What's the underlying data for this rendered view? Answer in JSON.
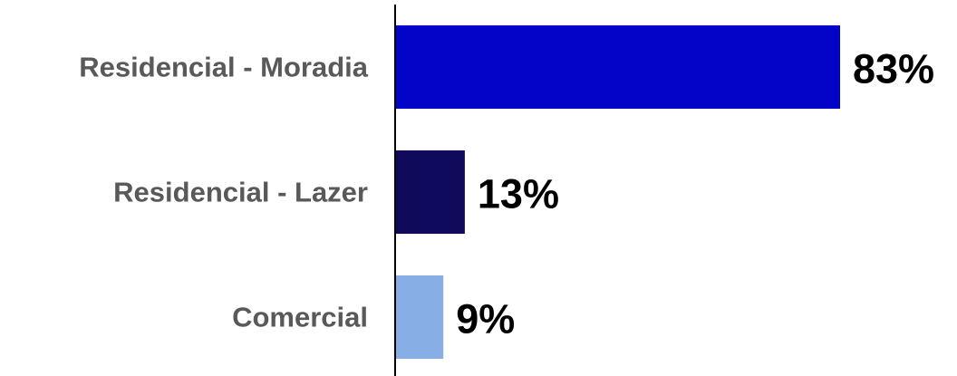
{
  "chart_data": {
    "type": "bar",
    "orientation": "horizontal",
    "categories": [
      "Residencial - Moradia",
      "Residencial - Lazer",
      "Comercial"
    ],
    "values": [
      83,
      13,
      9
    ],
    "value_labels": [
      "83%",
      "13%",
      "9%"
    ],
    "colors": [
      "#0404c8",
      "#100a5c",
      "#88aee6"
    ],
    "title": "",
    "xlabel": "",
    "ylabel": "",
    "xlim": [
      0,
      83
    ],
    "grid": false,
    "legend": "none"
  }
}
